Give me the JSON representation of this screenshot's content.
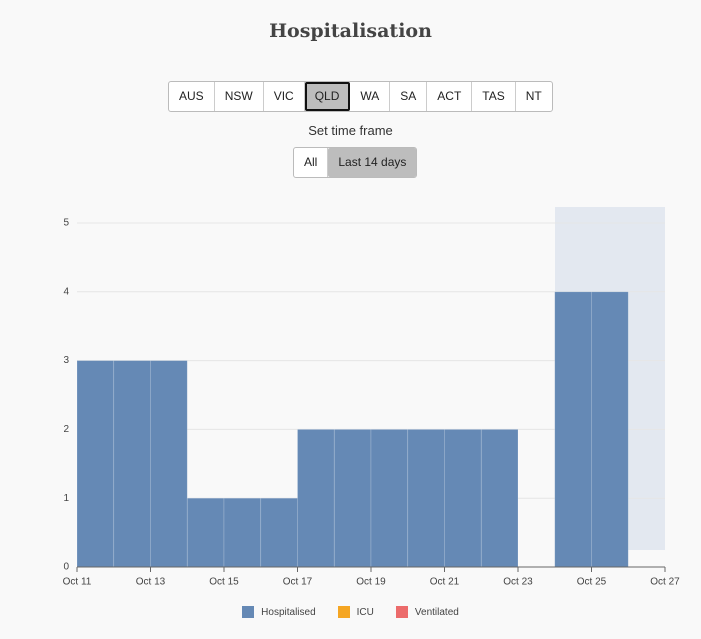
{
  "chart_data": {
    "type": "bar",
    "title": "Hospitalisation",
    "regions": [
      "AUS",
      "NSW",
      "VIC",
      "QLD",
      "WA",
      "SA",
      "ACT",
      "TAS",
      "NT"
    ],
    "time_frame_label": "Set time frame",
    "time_frames": [
      "All",
      "Last 14 days"
    ],
    "x": [
      11,
      12,
      13,
      14,
      15,
      16,
      17,
      18,
      19,
      20,
      21,
      22,
      24,
      25
    ],
    "series": [
      {
        "name": "Hospitalised",
        "color": "#6589b5",
        "values": [
          3,
          3,
          3,
          1,
          1,
          1,
          2,
          2,
          2,
          2,
          2,
          2,
          4,
          4
        ]
      },
      {
        "name": "ICU",
        "color": "#f5a623",
        "values": [
          0,
          0,
          0,
          0,
          0,
          0,
          0,
          0,
          0,
          0,
          0,
          0,
          0,
          0
        ]
      },
      {
        "name": "Ventilated",
        "color": "#ec6b6b",
        "values": [
          0,
          0,
          0,
          0,
          0,
          0,
          0,
          0,
          0,
          0,
          0,
          0,
          0,
          0
        ]
      }
    ],
    "stacked": true,
    "xlim": [
      11,
      27
    ],
    "xticks": [
      {
        "value": 11,
        "label": "Oct 11"
      },
      {
        "value": 13,
        "label": "Oct 13"
      },
      {
        "value": 15,
        "label": "Oct 15"
      },
      {
        "value": 17,
        "label": "Oct 17"
      },
      {
        "value": 19,
        "label": "Oct 19"
      },
      {
        "value": 21,
        "label": "Oct 21"
      },
      {
        "value": 23,
        "label": "Oct 23"
      },
      {
        "value": 25,
        "label": "Oct 25"
      },
      {
        "value": 27,
        "label": "Oct 27"
      }
    ],
    "ylim": [
      0,
      5
    ],
    "yticks": [
      0,
      1,
      2,
      3,
      4,
      5
    ],
    "grid": true
  }
}
